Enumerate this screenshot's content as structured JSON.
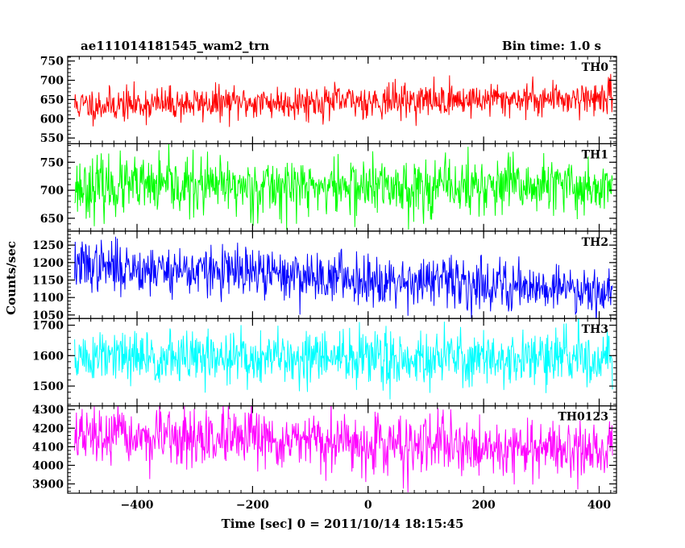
{
  "chart_data": {
    "type": "line",
    "title": "ae111014181545_wam2_trn",
    "subtitle": "Bin time: 1.0 s",
    "xlabel": "Time [sec] 0 = 2011/10/14 18:15:45",
    "ylabel": "Counts/sec",
    "xlim": [
      -520,
      430
    ],
    "data_x_range": [
      -508,
      423
    ],
    "bin_time_s": 1.0,
    "x_ticks": [
      -400,
      -200,
      0,
      200,
      400
    ],
    "x_tick_labels": [
      "−400",
      "−200",
      "0",
      "200",
      "400"
    ],
    "grid": false,
    "panels": [
      {
        "name": "TH0",
        "color": "#ff0000",
        "ylim": [
          535,
          762
        ],
        "y_ticks": [
          550,
          600,
          650,
          700,
          750
        ],
        "y_minor_step": 10,
        "mean_start": 635,
        "mean_end": 655,
        "noise_sd": 22,
        "seed": 11
      },
      {
        "name": "TH1",
        "color": "#00ff00",
        "ylim": [
          627,
          783
        ],
        "y_ticks": [
          650,
          700,
          750
        ],
        "y_minor_step": 10,
        "mean_start": 706,
        "mean_end": 706,
        "noise_sd": 26,
        "seed": 23
      },
      {
        "name": "TH2",
        "color": "#0000ff",
        "ylim": [
          1040,
          1290
        ],
        "y_ticks": [
          1050,
          1100,
          1150,
          1200,
          1250
        ],
        "y_minor_step": 10,
        "mean_start": 1192,
        "mean_end": 1122,
        "noise_sd": 36,
        "seed": 37
      },
      {
        "name": "TH3",
        "color": "#00ffff",
        "ylim": [
          1435,
          1722
        ],
        "y_ticks": [
          1500,
          1600,
          1700
        ],
        "y_minor_step": 20,
        "mean_start": 1592,
        "mean_end": 1592,
        "noise_sd": 45,
        "seed": 51
      },
      {
        "name": "TH0123",
        "color": "#ff00ff",
        "ylim": [
          3850,
          4320
        ],
        "y_ticks": [
          3900,
          4000,
          4100,
          4200,
          4300
        ],
        "y_minor_step": 20,
        "mean_start": 4155,
        "mean_end": 4080,
        "noise_sd": 75,
        "seed": 67
      }
    ]
  }
}
